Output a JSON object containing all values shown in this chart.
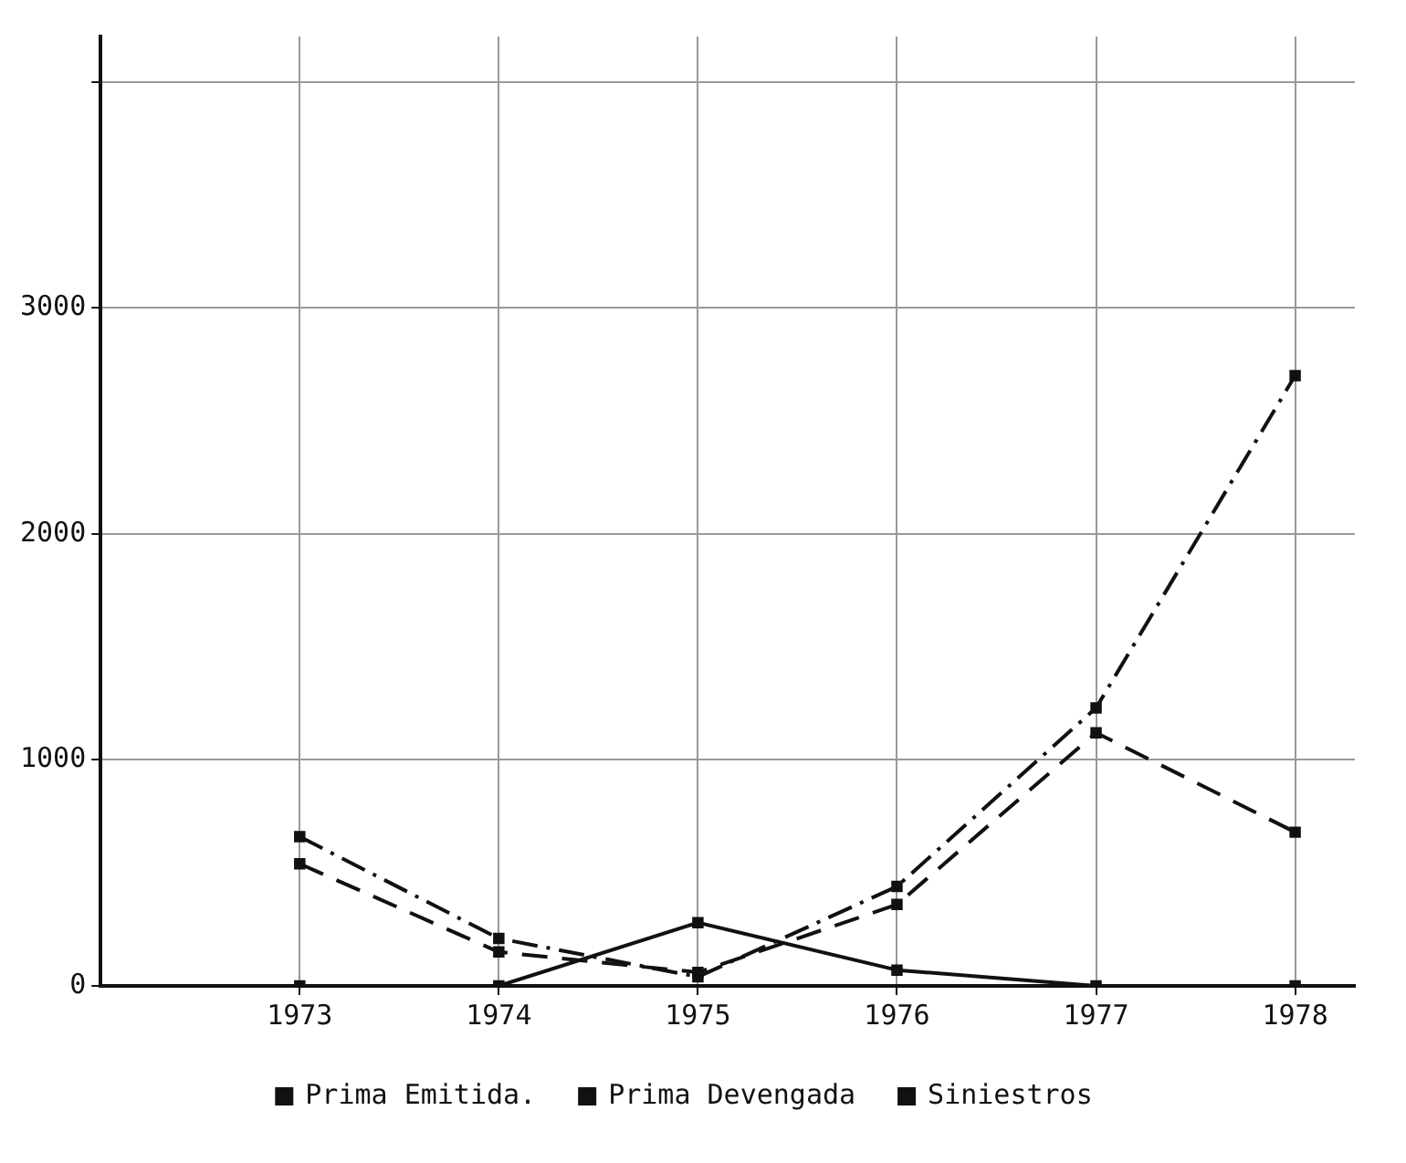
{
  "chart_data": {
    "type": "line",
    "x": [
      1973,
      1974,
      1975,
      1976,
      1977,
      1978
    ],
    "xlim": [
      1972,
      1978.3
    ],
    "xticks": [
      1973,
      1974,
      1975,
      1976,
      1977,
      1978
    ],
    "ylim": [
      0,
      4200
    ],
    "yticks": [
      0,
      1000,
      2000,
      3000,
      {
        "value": 4000,
        "label": null
      }
    ],
    "grid": true,
    "legend": "bottom",
    "marker": "square",
    "series": [
      {
        "name": "Prima Emitida.",
        "color": "#111111",
        "line_style": "dashdot",
        "values": [
          660,
          210,
          40,
          440,
          1230,
          2700
        ]
      },
      {
        "name": "Prima Devengada",
        "color": "#111111",
        "line_style": "dashed",
        "values": [
          540,
          150,
          60,
          360,
          1120,
          680
        ]
      },
      {
        "name": "Siniestros",
        "color": "#111111",
        "line_style": "solid",
        "values": [
          0,
          0,
          280,
          70,
          0,
          0
        ]
      }
    ]
  }
}
